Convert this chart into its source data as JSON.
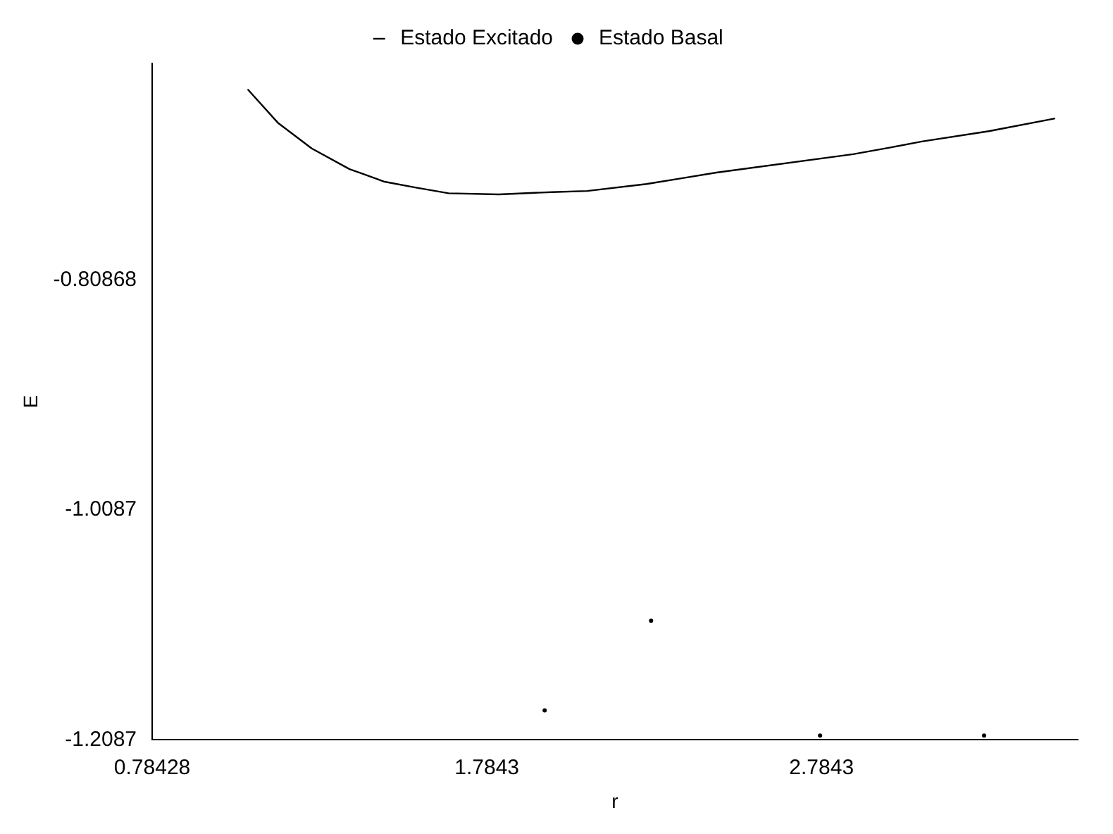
{
  "chart_data": {
    "type": "line",
    "xlabel": "r",
    "ylabel": "E",
    "xlim": [
      0.78428,
      3.55
    ],
    "xticks": [
      0.78428,
      1.7843,
      2.7843
    ],
    "ylim": [
      -1.2087,
      -0.62
    ],
    "yticks": [
      -1.2087,
      -1.0087,
      -0.80868
    ],
    "grid": false,
    "legend": "top",
    "line_style": "solid",
    "series": [
      {
        "name": "Estado Excitado",
        "marker": "none",
        "color": "#000000",
        "x": [
          1.071,
          1.161,
          1.261,
          1.374,
          1.479,
          1.57,
          1.67,
          1.82,
          1.979,
          2.084,
          2.261,
          2.366,
          2.47,
          2.879,
          2.993,
          3.084,
          3.284,
          3.48
        ],
        "values": [
          -0.643,
          -0.672,
          -0.694,
          -0.712,
          -0.723,
          -0.728,
          -0.733,
          -0.734,
          -0.732,
          -0.731,
          -0.725,
          -0.72,
          -0.715,
          -0.699,
          -0.693,
          -0.688,
          -0.679,
          -0.668
        ]
      },
      {
        "name": "Estado Basal",
        "type": "scatter",
        "marker": "circle",
        "color": "#000000",
        "x": [
          1.957,
          2.275,
          2.78,
          3.27
        ],
        "values": [
          -1.183,
          -1.105,
          -1.205,
          -1.205
        ]
      }
    ]
  }
}
